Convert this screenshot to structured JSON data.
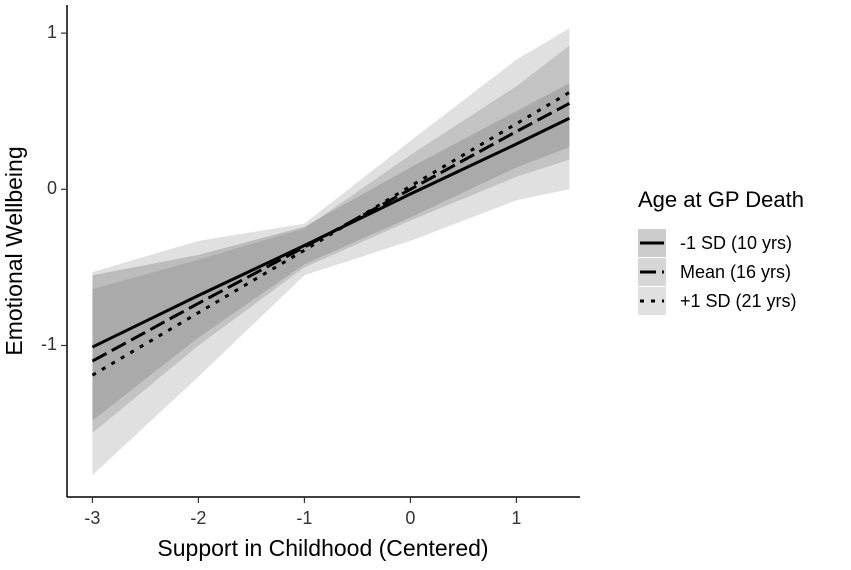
{
  "chart_data": {
    "type": "line",
    "x_label": "Support in Childhood (Centered)",
    "y_label": "Emotional Wellbeing",
    "legend_title": "Age at GP Death",
    "x": [
      -3,
      -2,
      -1,
      0,
      1,
      1.5
    ],
    "series": [
      {
        "name": "-1 SD (10 yrs)",
        "color": "#000000",
        "linestyle": "solid",
        "band_color": "#555555",
        "values": [
          -1.01,
          -0.68,
          -0.36,
          -0.03,
          0.29,
          0.455
        ],
        "lower": [
          -1.48,
          -0.95,
          -0.48,
          -0.18,
          0.14,
          0.27
        ],
        "upper": [
          -0.55,
          -0.42,
          -0.24,
          0.14,
          0.5,
          0.68
        ]
      },
      {
        "name": "Mean (16 yrs)",
        "color": "#000000",
        "linestyle": "dashed",
        "band_color": "#777777",
        "values": [
          -1.1,
          -0.73,
          -0.37,
          0.0,
          0.37,
          0.55
        ],
        "lower": [
          -1.56,
          -1.0,
          -0.5,
          -0.2,
          0.08,
          0.19
        ],
        "upper": [
          -0.64,
          -0.45,
          -0.25,
          0.22,
          0.66,
          0.92
        ]
      },
      {
        "name": "+1 SD (21 yrs)",
        "color": "#000000",
        "linestyle": "dotted",
        "band_color": "#999999",
        "values": [
          -1.19,
          -0.79,
          -0.39,
          0.02,
          0.42,
          0.62
        ],
        "lower": [
          -1.83,
          -1.2,
          -0.55,
          -0.33,
          -0.07,
          0.0
        ],
        "upper": [
          -0.53,
          -0.33,
          -0.22,
          0.31,
          0.83,
          1.03
        ]
      }
    ],
    "xlim": [
      -3.24,
      1.6
    ],
    "xticks": [
      -3,
      -2,
      -1,
      0,
      1
    ],
    "ylim": [
      -1.97,
      1.18
    ],
    "yticks": [
      -1,
      0,
      1
    ],
    "grid": false,
    "legend_position": "right"
  }
}
